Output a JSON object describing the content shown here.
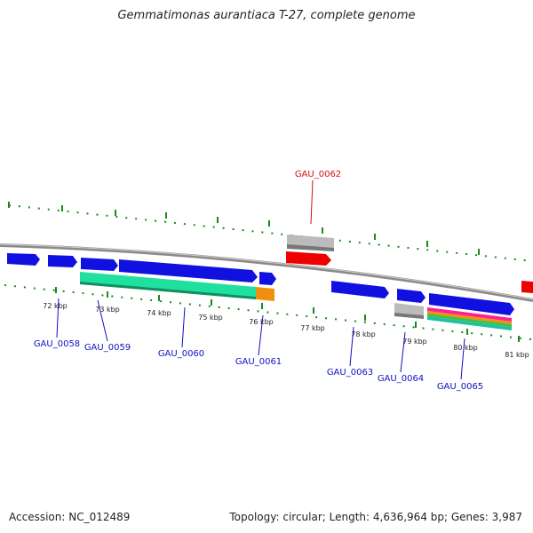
{
  "title": "Gemmatimonas aurantiaca T-27, complete genome",
  "accession": "Accession: NC_012489",
  "summary": "Topology: circular; Length: 4,636,964 bp; Genes: 3,987",
  "ticks": [
    "72 kbp",
    "73 kbp",
    "74 kbp",
    "75 kbp",
    "76 kbp",
    "77 kbp",
    "78 kbp",
    "79 kbp",
    "80 kbp",
    "81 kbp"
  ],
  "genes": [
    {
      "label": "GAU_0058",
      "strand": "forward",
      "color": "#1010e0"
    },
    {
      "label": "GAU_0059",
      "strand": "forward",
      "color": "#1010e0"
    },
    {
      "label": "GAU_0060",
      "strand": "forward",
      "color": "#1010e0"
    },
    {
      "label": "GAU_0061",
      "strand": "forward",
      "color": "#1010e0"
    },
    {
      "label": "GAU_0062",
      "strand": "reverse",
      "color": "#ee0000"
    },
    {
      "label": "GAU_0063",
      "strand": "forward",
      "color": "#1010e0"
    },
    {
      "label": "GAU_0064",
      "strand": "forward",
      "color": "#1010e0"
    },
    {
      "label": "GAU_0065",
      "strand": "forward",
      "color": "#1010e0"
    }
  ],
  "colors": {
    "backbone": "#8a8a8a",
    "tick": "#1a8a1a",
    "label_forward": "#1010c0",
    "label_reverse": "#d01010",
    "feature_teal": "#20e0a0",
    "feature_orange": "#f09010",
    "feature_gray": "#bbbbbb"
  }
}
